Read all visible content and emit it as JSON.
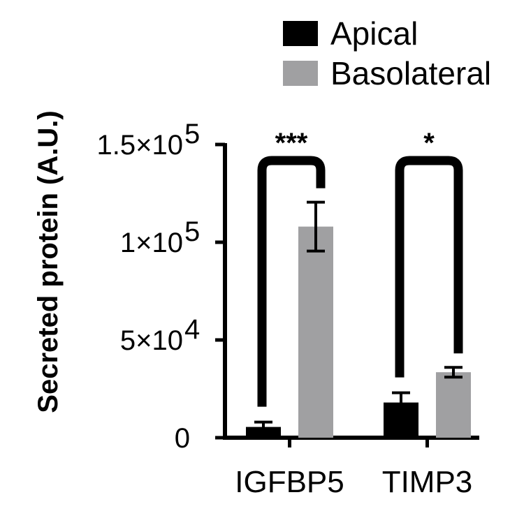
{
  "chart_data": {
    "type": "bar",
    "ylabel": "Secreted protein (A.U.)",
    "categories": [
      "IGFBP5",
      "TIMP3"
    ],
    "series": [
      {
        "name": "Apical",
        "color": "#000000",
        "values": [
          5500,
          18000
        ],
        "errors": [
          2500,
          5000
        ]
      },
      {
        "name": "Basolateral",
        "color": "#a0a0a2",
        "values": [
          108000,
          33500
        ],
        "errors": [
          12500,
          2500
        ]
      }
    ],
    "ylim": [
      0,
      150000
    ],
    "yticks": [
      {
        "value": 0,
        "base": "0",
        "exp": ""
      },
      {
        "value": 50000,
        "base": "5×10",
        "exp": "4"
      },
      {
        "value": 100000,
        "base": "1×10",
        "exp": "5"
      },
      {
        "value": 150000,
        "base": "1.5×10",
        "exp": "5"
      }
    ],
    "significance": [
      "***",
      "*"
    ],
    "legend_position": "top-right"
  }
}
